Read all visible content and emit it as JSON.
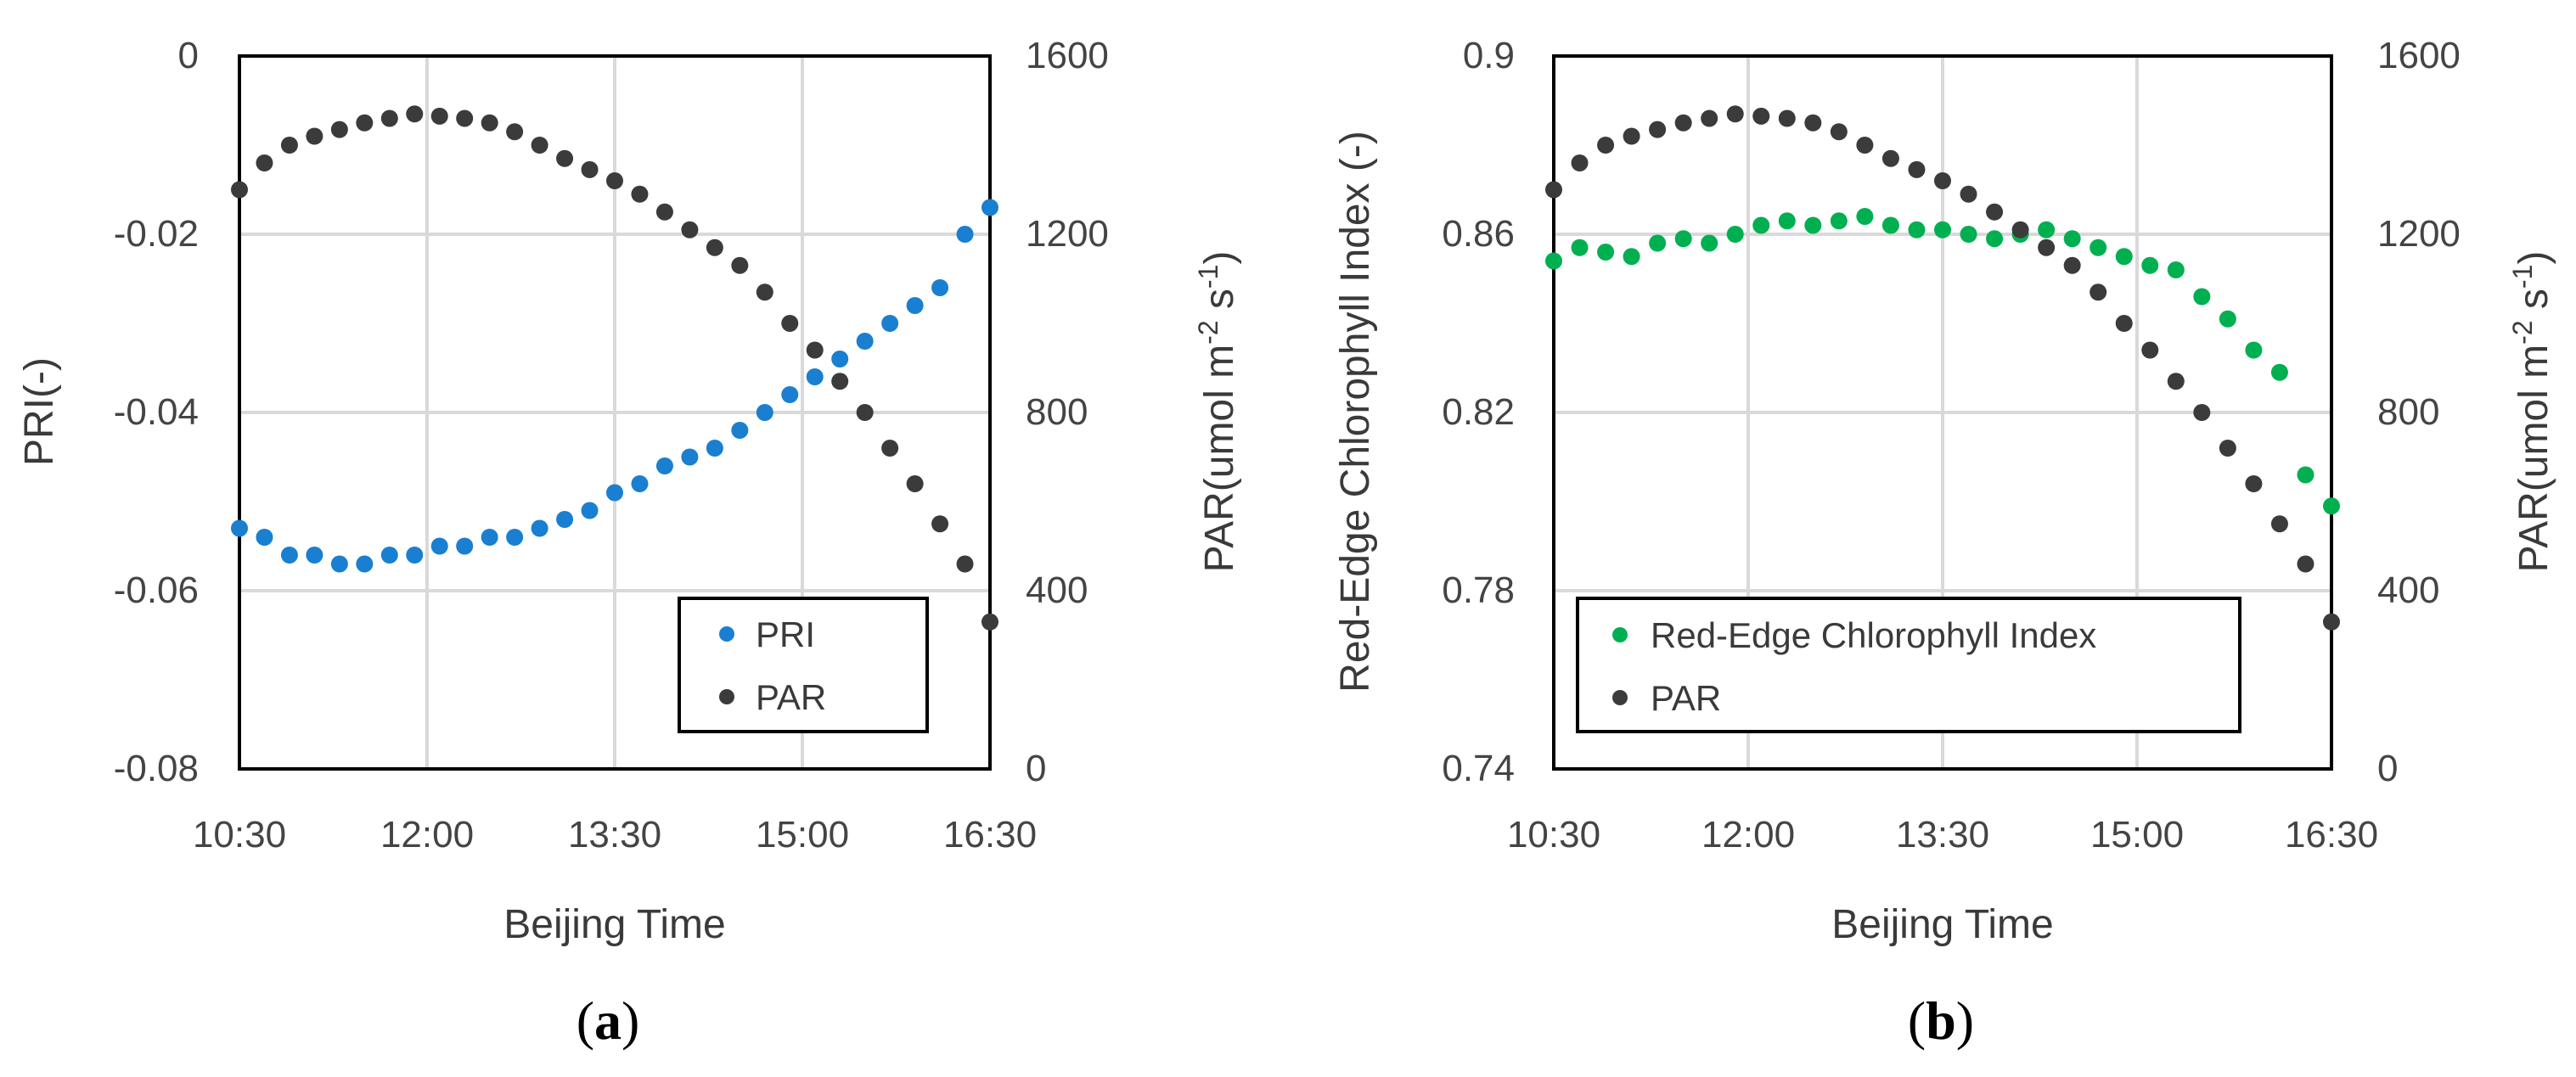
{
  "colors": {
    "pri": "#1a7fd0",
    "chl": "#00b050",
    "par": "#3b3b3b",
    "grid": "#d9d9d9",
    "axis": "#000000"
  },
  "chart_data": [
    {
      "type": "scatter",
      "panel_label": "a",
      "xlabel": "Beijing Time",
      "x_ticks": [
        "10:30",
        "12:00",
        "13:30",
        "15:00",
        "16:30"
      ],
      "xlim": [
        "10:30",
        "16:30"
      ],
      "ylabel": "PRI(-)",
      "ylim": [
        -0.08,
        0
      ],
      "y_ticks": [
        "0",
        "-0.02",
        "-0.04",
        "-0.06",
        "-0.08"
      ],
      "y2label_main": "PAR(umol m",
      "y2label_sup1": "-2",
      "y2label_mid": " s",
      "y2label_sup2": "-1",
      "y2label_end": ")",
      "y2lim": [
        0,
        1600
      ],
      "y2_ticks": [
        "0",
        "400",
        "800",
        "1200",
        "1600"
      ],
      "grid": true,
      "legend_position": "bottom-right",
      "series": [
        {
          "name": "PRI",
          "axis": "left",
          "points": [
            [
              "10:30",
              -0.053
            ],
            [
              "10:42",
              -0.054
            ],
            [
              "10:54",
              -0.056
            ],
            [
              "11:06",
              -0.056
            ],
            [
              "11:18",
              -0.057
            ],
            [
              "11:30",
              -0.057
            ],
            [
              "11:42",
              -0.056
            ],
            [
              "11:54",
              -0.056
            ],
            [
              "12:06",
              -0.055
            ],
            [
              "12:18",
              -0.055
            ],
            [
              "12:30",
              -0.054
            ],
            [
              "12:42",
              -0.054
            ],
            [
              "12:54",
              -0.053
            ],
            [
              "13:06",
              -0.052
            ],
            [
              "13:18",
              -0.051
            ],
            [
              "13:30",
              -0.049
            ],
            [
              "13:42",
              -0.048
            ],
            [
              "13:54",
              -0.046
            ],
            [
              "14:06",
              -0.045
            ],
            [
              "14:18",
              -0.044
            ],
            [
              "14:30",
              -0.042
            ],
            [
              "14:42",
              -0.04
            ],
            [
              "14:54",
              -0.038
            ],
            [
              "15:06",
              -0.036
            ],
            [
              "15:18",
              -0.034
            ],
            [
              "15:30",
              -0.032
            ],
            [
              "15:42",
              -0.03
            ],
            [
              "15:54",
              -0.028
            ],
            [
              "16:06",
              -0.026
            ],
            [
              "16:18",
              -0.02
            ],
            [
              "16:30",
              -0.017
            ]
          ]
        },
        {
          "name": "PAR",
          "axis": "right",
          "points": [
            [
              "10:30",
              1300
            ],
            [
              "10:42",
              1360
            ],
            [
              "10:54",
              1400
            ],
            [
              "11:06",
              1420
            ],
            [
              "11:18",
              1435
            ],
            [
              "11:30",
              1450
            ],
            [
              "11:42",
              1460
            ],
            [
              "11:54",
              1470
            ],
            [
              "12:06",
              1465
            ],
            [
              "12:18",
              1460
            ],
            [
              "12:30",
              1450
            ],
            [
              "12:42",
              1430
            ],
            [
              "12:54",
              1400
            ],
            [
              "13:06",
              1370
            ],
            [
              "13:18",
              1345
            ],
            [
              "13:30",
              1320
            ],
            [
              "13:42",
              1290
            ],
            [
              "13:54",
              1250
            ],
            [
              "14:06",
              1210
            ],
            [
              "14:18",
              1170
            ],
            [
              "14:30",
              1130
            ],
            [
              "14:42",
              1070
            ],
            [
              "14:54",
              1000
            ],
            [
              "15:06",
              940
            ],
            [
              "15:18",
              870
            ],
            [
              "15:30",
              800
            ],
            [
              "15:42",
              720
            ],
            [
              "15:54",
              640
            ],
            [
              "16:06",
              550
            ],
            [
              "16:18",
              460
            ],
            [
              "16:30",
              330
            ]
          ]
        }
      ]
    },
    {
      "type": "scatter",
      "panel_label": "b",
      "xlabel": "Beijing Time",
      "x_ticks": [
        "10:30",
        "12:00",
        "13:30",
        "15:00",
        "16:30"
      ],
      "xlim": [
        "10:30",
        "16:30"
      ],
      "ylabel": "Red-Edge Chlorophyll Index (-)",
      "ylim": [
        0.74,
        0.9
      ],
      "y_ticks": [
        "0.9",
        "0.86",
        "0.82",
        "0.78",
        "0.74"
      ],
      "y2label_main": "PAR(umol m",
      "y2label_sup1": "-2",
      "y2label_mid": " s",
      "y2label_sup2": "-1",
      "y2label_end": ")",
      "y2lim": [
        0,
        1600
      ],
      "y2_ticks": [
        "0",
        "400",
        "800",
        "1200",
        "1600"
      ],
      "grid": true,
      "legend_position": "bottom-left",
      "series": [
        {
          "name": "Red-Edge Chlorophyll Index",
          "axis": "left",
          "points": [
            [
              "10:30",
              0.854
            ],
            [
              "10:42",
              0.857
            ],
            [
              "10:54",
              0.856
            ],
            [
              "11:06",
              0.855
            ],
            [
              "11:18",
              0.858
            ],
            [
              "11:30",
              0.859
            ],
            [
              "11:42",
              0.858
            ],
            [
              "11:54",
              0.86
            ],
            [
              "12:06",
              0.862
            ],
            [
              "12:18",
              0.863
            ],
            [
              "12:30",
              0.862
            ],
            [
              "12:42",
              0.863
            ],
            [
              "12:54",
              0.864
            ],
            [
              "13:06",
              0.862
            ],
            [
              "13:18",
              0.861
            ],
            [
              "13:30",
              0.861
            ],
            [
              "13:42",
              0.86
            ],
            [
              "13:54",
              0.859
            ],
            [
              "14:06",
              0.86
            ],
            [
              "14:18",
              0.861
            ],
            [
              "14:30",
              0.859
            ],
            [
              "14:42",
              0.857
            ],
            [
              "14:54",
              0.855
            ],
            [
              "15:06",
              0.853
            ],
            [
              "15:18",
              0.852
            ],
            [
              "15:30",
              0.846
            ],
            [
              "15:42",
              0.841
            ],
            [
              "15:54",
              0.834
            ],
            [
              "16:06",
              0.829
            ],
            [
              "16:18",
              0.806
            ],
            [
              "16:30",
              0.799
            ]
          ]
        },
        {
          "name": "PAR",
          "axis": "right",
          "points": [
            [
              "10:30",
              1300
            ],
            [
              "10:42",
              1360
            ],
            [
              "10:54",
              1400
            ],
            [
              "11:06",
              1420
            ],
            [
              "11:18",
              1435
            ],
            [
              "11:30",
              1450
            ],
            [
              "11:42",
              1460
            ],
            [
              "11:54",
              1470
            ],
            [
              "12:06",
              1465
            ],
            [
              "12:18",
              1460
            ],
            [
              "12:30",
              1450
            ],
            [
              "12:42",
              1430
            ],
            [
              "12:54",
              1400
            ],
            [
              "13:06",
              1370
            ],
            [
              "13:18",
              1345
            ],
            [
              "13:30",
              1320
            ],
            [
              "13:42",
              1290
            ],
            [
              "13:54",
              1250
            ],
            [
              "14:06",
              1210
            ],
            [
              "14:18",
              1170
            ],
            [
              "14:30",
              1130
            ],
            [
              "14:42",
              1070
            ],
            [
              "14:54",
              1000
            ],
            [
              "15:06",
              940
            ],
            [
              "15:18",
              870
            ],
            [
              "15:30",
              800
            ],
            [
              "15:42",
              720
            ],
            [
              "15:54",
              640
            ],
            [
              "16:06",
              550
            ],
            [
              "16:18",
              460
            ],
            [
              "16:30",
              330
            ]
          ]
        }
      ]
    }
  ]
}
